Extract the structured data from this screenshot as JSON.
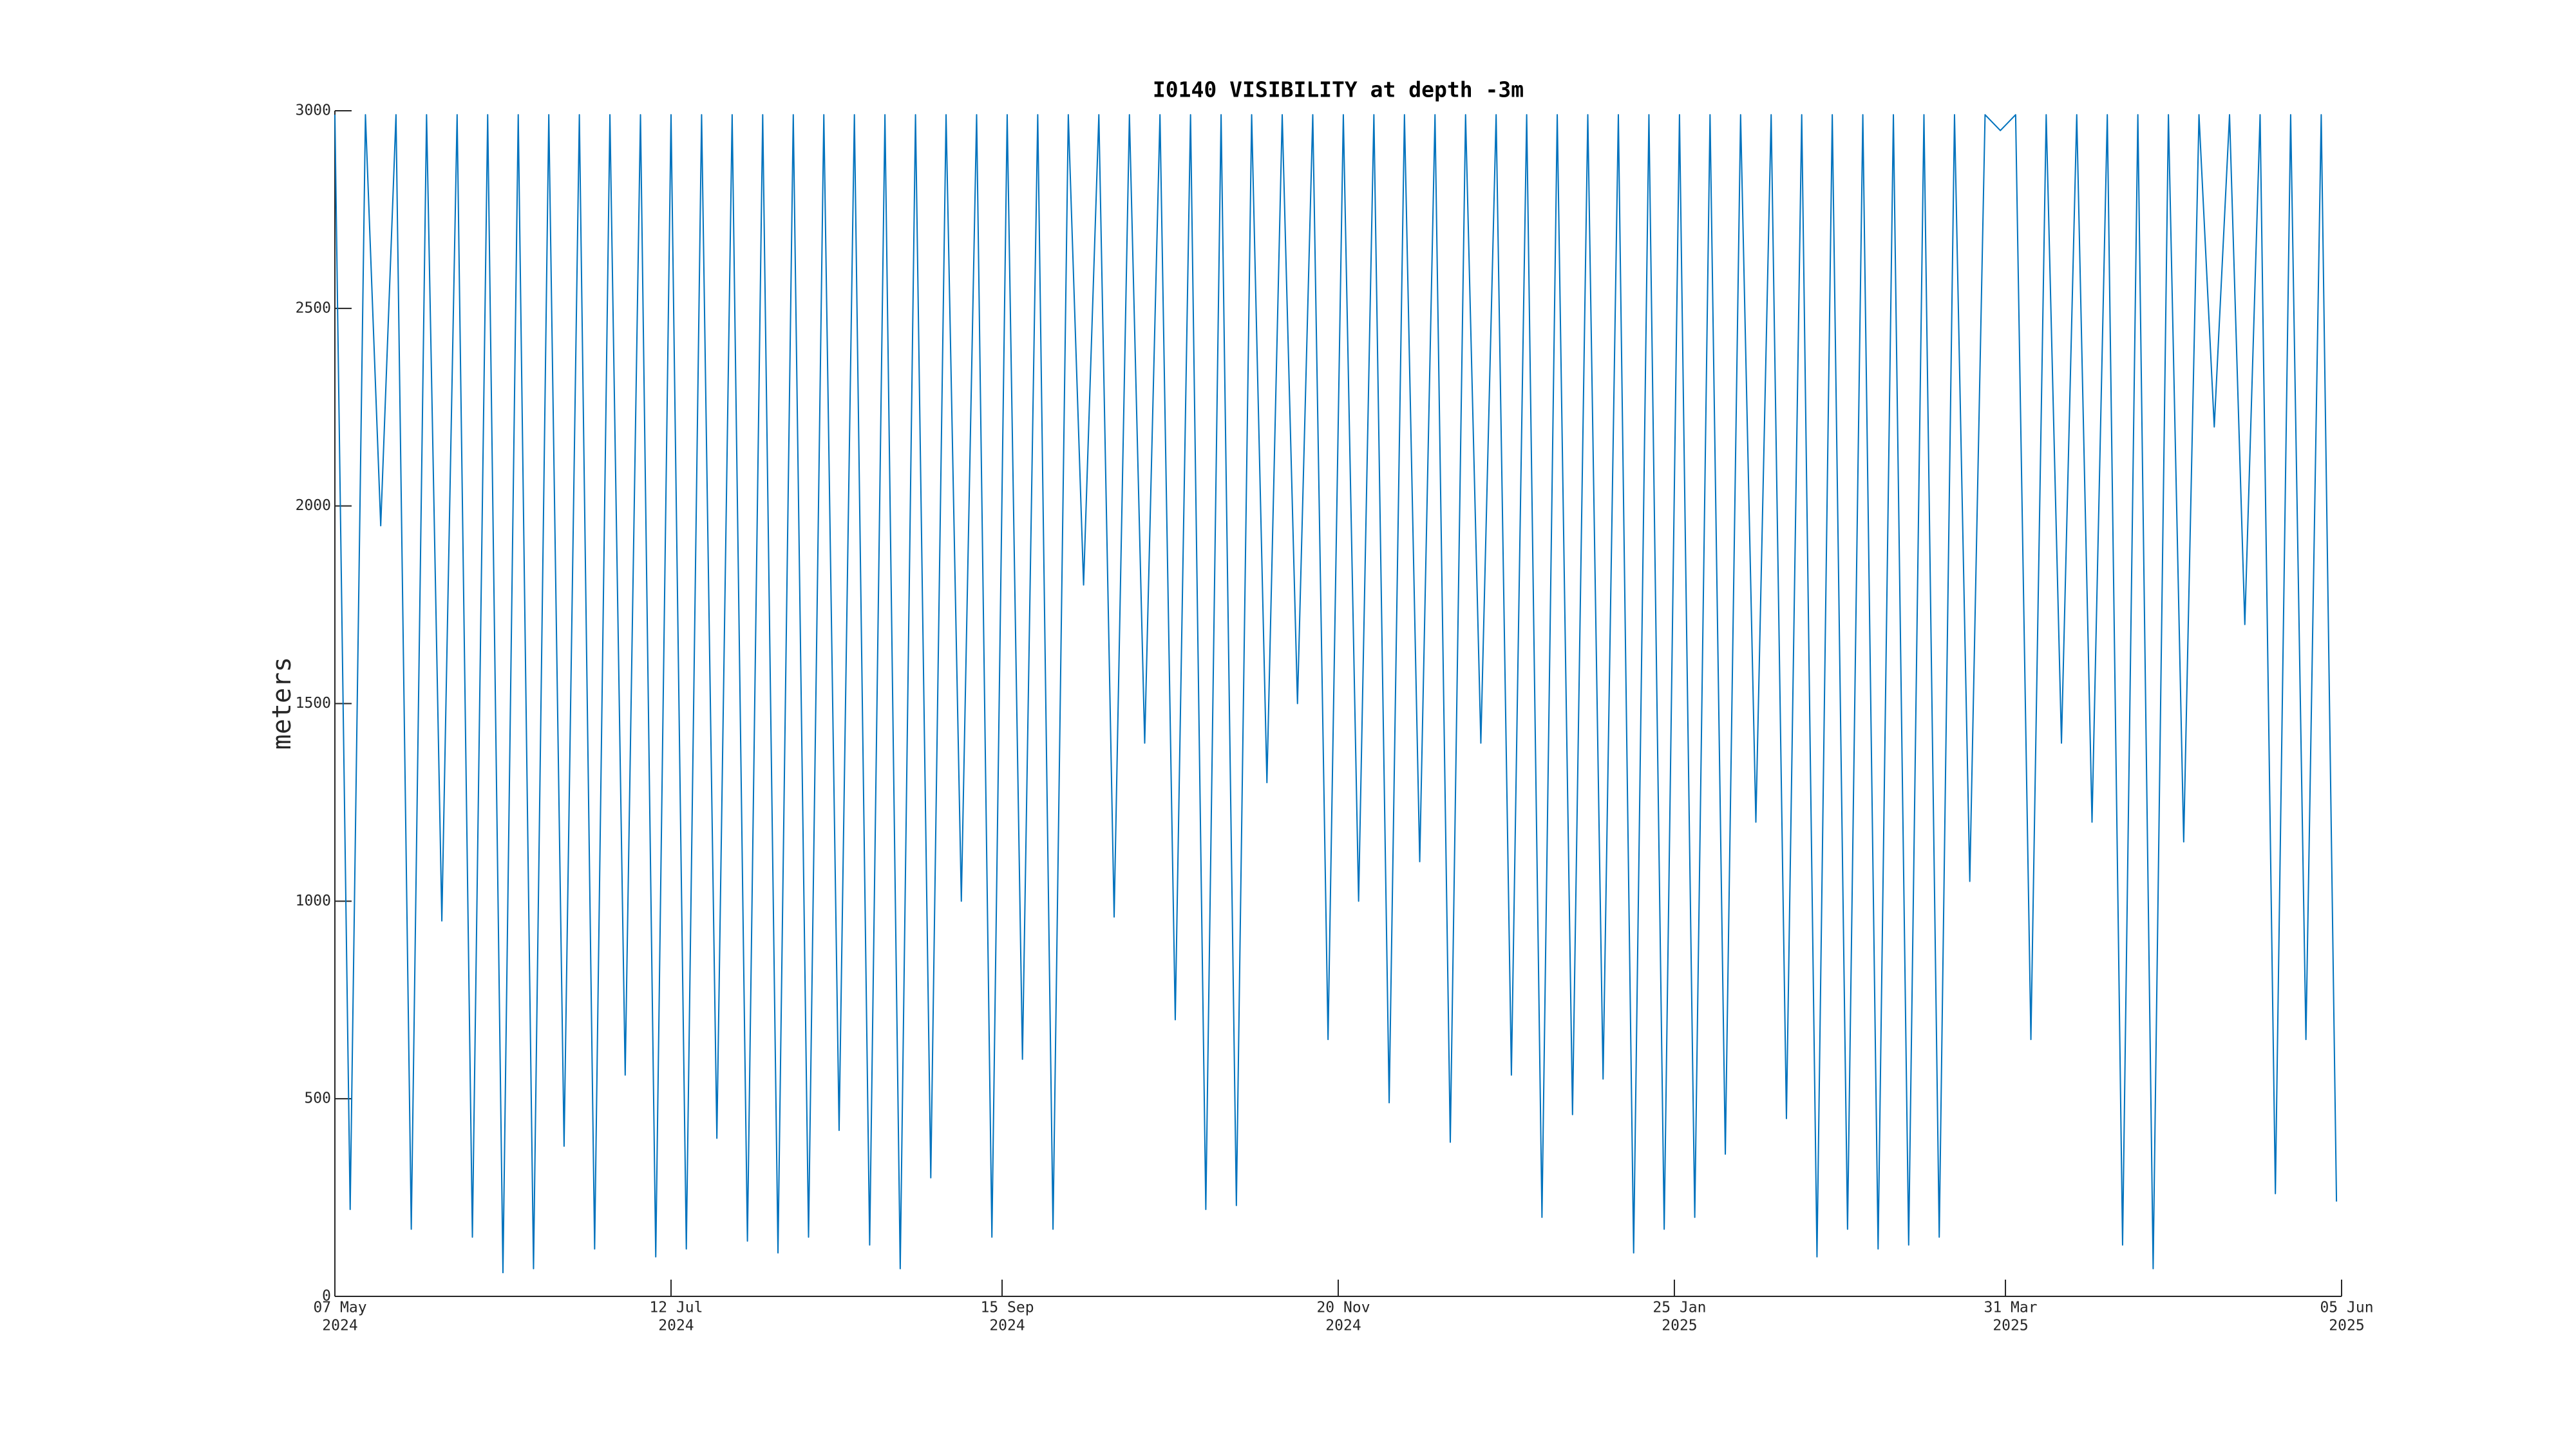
{
  "chart_data": {
    "type": "line",
    "title": "I0140 VISIBILITY at depth -3m",
    "ylabel": "meters",
    "color": "#0072bd",
    "xlim": [
      "2024-05-07",
      "2025-06-05"
    ],
    "ylim": [
      0,
      3000
    ],
    "yticks": [
      0,
      500,
      1000,
      1500,
      2000,
      2500,
      3000
    ],
    "xticks": [
      {
        "value": "2024-05-07",
        "label": [
          "07 May",
          "2024"
        ]
      },
      {
        "value": "2024-07-12",
        "label": [
          "12 Jul",
          "2024"
        ]
      },
      {
        "value": "2024-09-15",
        "label": [
          "15 Sep",
          "2024"
        ]
      },
      {
        "value": "2024-11-20",
        "label": [
          "20 Nov",
          "2024"
        ]
      },
      {
        "value": "2025-01-25",
        "label": [
          "25 Jan",
          "2025"
        ]
      },
      {
        "value": "2025-03-31",
        "label": [
          "31 Mar",
          "2025"
        ]
      },
      {
        "value": "2025-06-05",
        "label": [
          "05 Jun",
          "2025"
        ]
      }
    ],
    "x": [
      "2024-05-07",
      "2024-05-10",
      "2024-05-13",
      "2024-05-16",
      "2024-05-19",
      "2024-05-22",
      "2024-05-25",
      "2024-05-28",
      "2024-05-31",
      "2024-06-03",
      "2024-06-06",
      "2024-06-09",
      "2024-06-12",
      "2024-06-15",
      "2024-06-18",
      "2024-06-21",
      "2024-06-24",
      "2024-06-27",
      "2024-06-30",
      "2024-07-03",
      "2024-07-06",
      "2024-07-09",
      "2024-07-12",
      "2024-07-15",
      "2024-07-18",
      "2024-07-21",
      "2024-07-24",
      "2024-07-27",
      "2024-07-30",
      "2024-08-02",
      "2024-08-05",
      "2024-08-08",
      "2024-08-11",
      "2024-08-14",
      "2024-08-17",
      "2024-08-20",
      "2024-08-23",
      "2024-08-26",
      "2024-08-29",
      "2024-09-01",
      "2024-09-04",
      "2024-09-07",
      "2024-09-10",
      "2024-09-13",
      "2024-09-16",
      "2024-09-19",
      "2024-09-22",
      "2024-09-25",
      "2024-09-28",
      "2024-10-01",
      "2024-10-04",
      "2024-10-07",
      "2024-10-10",
      "2024-10-13",
      "2024-10-16",
      "2024-10-19",
      "2024-10-22",
      "2024-10-25",
      "2024-10-28",
      "2024-10-31",
      "2024-11-03",
      "2024-11-06",
      "2024-11-09",
      "2024-11-12",
      "2024-11-15",
      "2024-11-18",
      "2024-11-21",
      "2024-11-24",
      "2024-11-27",
      "2024-11-30",
      "2024-12-03",
      "2024-12-06",
      "2024-12-09",
      "2024-12-12",
      "2024-12-15",
      "2024-12-18",
      "2024-12-21",
      "2024-12-24",
      "2024-12-27",
      "2024-12-30",
      "2025-01-02",
      "2025-01-05",
      "2025-01-08",
      "2025-01-11",
      "2025-01-14",
      "2025-01-17",
      "2025-01-20",
      "2025-01-23",
      "2025-01-26",
      "2025-01-29",
      "2025-02-01",
      "2025-02-04",
      "2025-02-07",
      "2025-02-10",
      "2025-02-13",
      "2025-02-16",
      "2025-02-19",
      "2025-02-22",
      "2025-02-25",
      "2025-02-28",
      "2025-03-03",
      "2025-03-06",
      "2025-03-09",
      "2025-03-12",
      "2025-03-15",
      "2025-03-18",
      "2025-03-21",
      "2025-03-24",
      "2025-03-27",
      "2025-03-30",
      "2025-04-02",
      "2025-04-05",
      "2025-04-08",
      "2025-04-11",
      "2025-04-14",
      "2025-04-17",
      "2025-04-20",
      "2025-04-23",
      "2025-04-26",
      "2025-04-29",
      "2025-05-02",
      "2025-05-05",
      "2025-05-08",
      "2025-05-11",
      "2025-05-14",
      "2025-05-17",
      "2025-05-20",
      "2025-05-23",
      "2025-05-26",
      "2025-05-29",
      "2025-06-01",
      "2025-06-04"
    ],
    "values": [
      2990,
      220,
      2990,
      1950,
      2990,
      170,
      2990,
      950,
      2990,
      150,
      2990,
      60,
      2990,
      70,
      2990,
      380,
      2990,
      120,
      2990,
      560,
      2990,
      100,
      2990,
      120,
      2990,
      400,
      2990,
      140,
      2990,
      110,
      2990,
      150,
      2990,
      420,
      2990,
      130,
      2990,
      70,
      2990,
      300,
      2990,
      1000,
      2990,
      150,
      2990,
      600,
      2990,
      170,
      2990,
      1800,
      2990,
      960,
      2990,
      1400,
      2990,
      700,
      2990,
      220,
      2990,
      230,
      2990,
      1300,
      2990,
      1500,
      2990,
      650,
      2990,
      1000,
      2990,
      490,
      2990,
      1100,
      2990,
      390,
      2990,
      1400,
      2990,
      560,
      2990,
      200,
      2990,
      460,
      2990,
      550,
      2990,
      110,
      2990,
      170,
      2990,
      200,
      2990,
      360,
      2990,
      1200,
      2990,
      450,
      2990,
      100,
      2990,
      170,
      2990,
      120,
      2990,
      130,
      2990,
      150,
      2990,
      1050,
      2990,
      2950,
      2990,
      650,
      2990,
      1400,
      2990,
      1200,
      2990,
      130,
      2990,
      70,
      2990,
      1150,
      2990,
      2200,
      2990,
      1700,
      2990,
      260,
      2990,
      650,
      2990,
      240
    ]
  }
}
